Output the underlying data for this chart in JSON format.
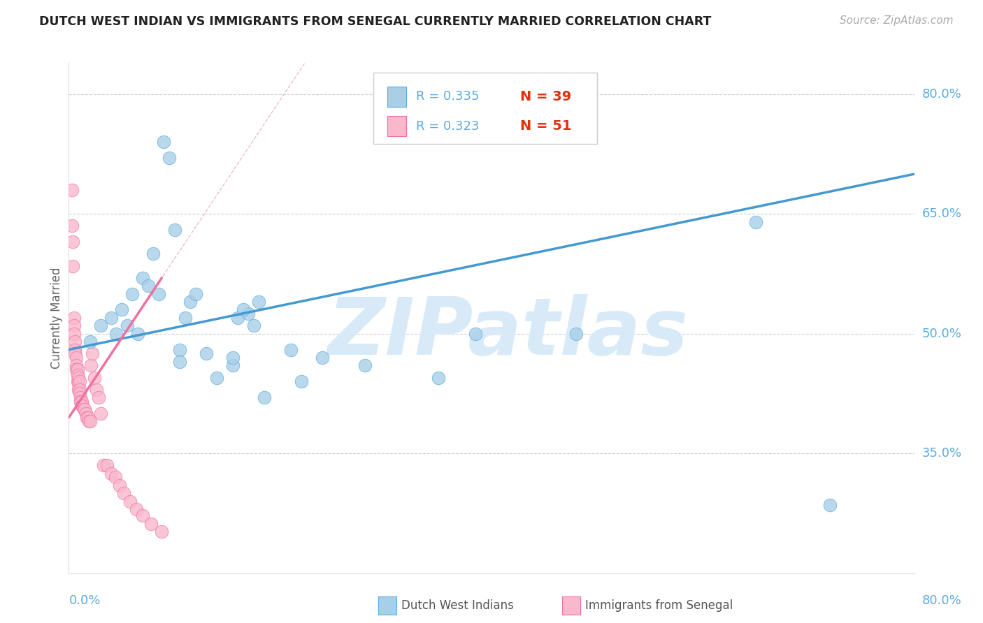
{
  "title": "DUTCH WEST INDIAN VS IMMIGRANTS FROM SENEGAL CURRENTLY MARRIED CORRELATION CHART",
  "source": "Source: ZipAtlas.com",
  "ylabel": "Currently Married",
  "xlim": [
    0.0,
    0.8
  ],
  "ylim": [
    0.2,
    0.84
  ],
  "yticks": [
    0.8,
    0.65,
    0.5,
    0.35
  ],
  "ytick_labels": [
    "80.0%",
    "65.0%",
    "50.0%",
    "35.0%"
  ],
  "xtick_left": "0.0%",
  "xtick_right": "80.0%",
  "R1": "0.335",
  "N1": "39",
  "R2": "0.323",
  "N2": "51",
  "legend_label1": "Dutch West Indians",
  "legend_label2": "Immigrants from Senegal",
  "color_blue": "#a8cfe8",
  "color_blue_edge": "#5baae0",
  "color_pink": "#f9b8cc",
  "color_pink_edge": "#f070a0",
  "color_blue_line": "#4499d0",
  "color_pink_line": "#f070a0",
  "color_diag": "#e0b0c0",
  "color_grid": "#cccccc",
  "color_tick": "#5baae0",
  "color_title": "#222222",
  "color_source": "#aaaaaa",
  "color_r_text": "#5baae0",
  "color_n_text": "#e03010",
  "blue_x": [
    0.02,
    0.03,
    0.04,
    0.045,
    0.05,
    0.055,
    0.06,
    0.065,
    0.07,
    0.075,
    0.08,
    0.085,
    0.09,
    0.095,
    0.1,
    0.105,
    0.11,
    0.115,
    0.12,
    0.13,
    0.14,
    0.155,
    0.16,
    0.17,
    0.18,
    0.21,
    0.22,
    0.24,
    0.165,
    0.175,
    0.28,
    0.35,
    0.385,
    0.48,
    0.65,
    0.72,
    0.155,
    0.185,
    0.105
  ],
  "blue_y": [
    0.49,
    0.51,
    0.52,
    0.5,
    0.53,
    0.51,
    0.55,
    0.5,
    0.57,
    0.56,
    0.6,
    0.55,
    0.74,
    0.72,
    0.63,
    0.48,
    0.52,
    0.54,
    0.55,
    0.475,
    0.445,
    0.46,
    0.52,
    0.525,
    0.54,
    0.48,
    0.44,
    0.47,
    0.53,
    0.51,
    0.46,
    0.445,
    0.5,
    0.5,
    0.64,
    0.285,
    0.47,
    0.42,
    0.465
  ],
  "pink_x": [
    0.003,
    0.003,
    0.004,
    0.004,
    0.005,
    0.005,
    0.005,
    0.006,
    0.006,
    0.006,
    0.007,
    0.007,
    0.007,
    0.008,
    0.008,
    0.008,
    0.009,
    0.009,
    0.009,
    0.01,
    0.01,
    0.01,
    0.011,
    0.011,
    0.012,
    0.012,
    0.013,
    0.014,
    0.015,
    0.016,
    0.017,
    0.018,
    0.019,
    0.02,
    0.021,
    0.022,
    0.024,
    0.026,
    0.028,
    0.03,
    0.033,
    0.036,
    0.04,
    0.044,
    0.048,
    0.052,
    0.058,
    0.064,
    0.07,
    0.078,
    0.088
  ],
  "pink_y": [
    0.68,
    0.635,
    0.615,
    0.585,
    0.52,
    0.51,
    0.5,
    0.49,
    0.48,
    0.475,
    0.47,
    0.46,
    0.455,
    0.455,
    0.448,
    0.44,
    0.445,
    0.438,
    0.43,
    0.44,
    0.43,
    0.425,
    0.42,
    0.415,
    0.415,
    0.41,
    0.41,
    0.405,
    0.405,
    0.4,
    0.395,
    0.395,
    0.39,
    0.39,
    0.46,
    0.475,
    0.445,
    0.43,
    0.42,
    0.4,
    0.335,
    0.335,
    0.325,
    0.32,
    0.31,
    0.3,
    0.29,
    0.28,
    0.272,
    0.262,
    0.252
  ],
  "blue_trendline_x": [
    0.0,
    0.8
  ],
  "blue_trendline_y": [
    0.48,
    0.7
  ],
  "pink_trendline_x": [
    0.0,
    0.088
  ],
  "pink_trendline_y": [
    0.395,
    0.57
  ],
  "watermark": "ZIPatlas",
  "watermark_color": "#d8eaf8"
}
